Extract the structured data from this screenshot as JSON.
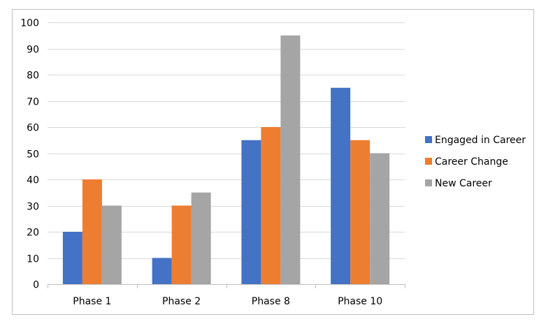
{
  "chart_data": {
    "type": "bar",
    "categories": [
      "Phase 1",
      "Phase 2",
      "Phase 8",
      "Phase 10"
    ],
    "series": [
      {
        "name": "Engaged in Career",
        "color": "#4472C4",
        "values": [
          20,
          10,
          55,
          75
        ]
      },
      {
        "name": "Career Change",
        "color": "#ED7D31",
        "values": [
          40,
          30,
          60,
          55
        ]
      },
      {
        "name": "New Career",
        "color": "#A5A5A5",
        "values": [
          30,
          35,
          95,
          50
        ]
      }
    ],
    "title": "",
    "xlabel": "",
    "ylabel": "",
    "ylim": [
      0,
      100
    ],
    "yticks": [
      0,
      10,
      20,
      30,
      40,
      50,
      60,
      70,
      80,
      90,
      100
    ],
    "grid": true,
    "legend_position": "right",
    "colors": {
      "gridline": "#D9D9D9",
      "axis": "#BFBFBF",
      "frame": "#BFBFBF"
    }
  }
}
